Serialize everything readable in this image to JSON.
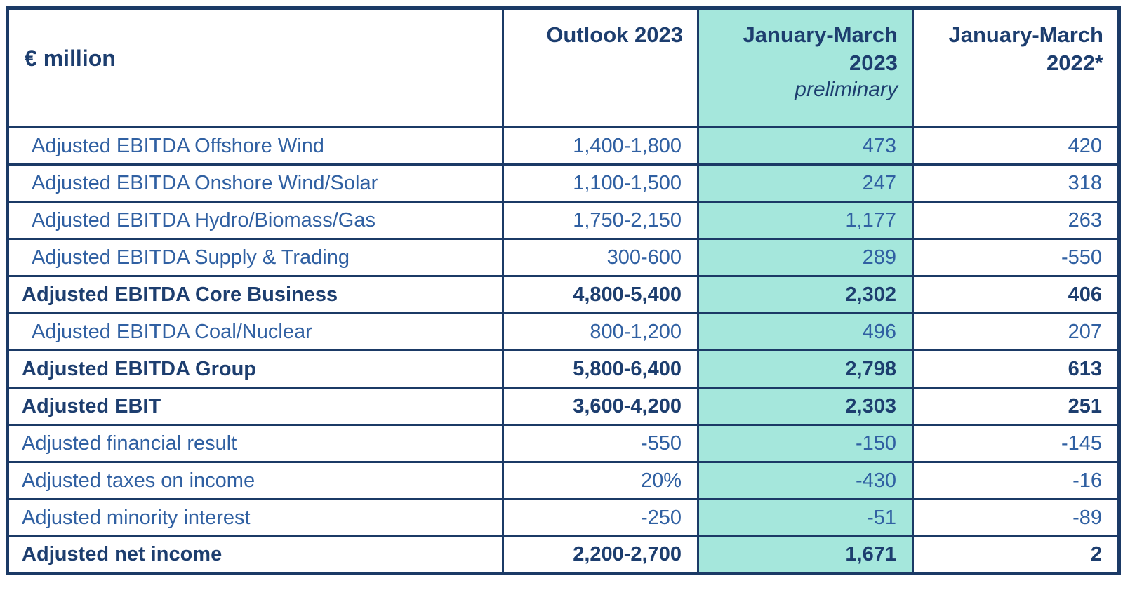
{
  "colors": {
    "highlight": "#A5E7DC",
    "border": "#1B3A66",
    "text_bold": "#1D3E6F",
    "text_regular": "#3060A2",
    "page_bg": "#FFFFFF"
  },
  "table": {
    "unit_label": "€ million",
    "columns": [
      {
        "label": "Outlook 2023",
        "sublabel": "",
        "highlight": false
      },
      {
        "label": "January-March 2023",
        "sublabel": "preliminary",
        "highlight": true
      },
      {
        "label": "January-March 2022*",
        "sublabel": "",
        "highlight": false
      }
    ],
    "rows": [
      {
        "label": "Adjusted EBITDA Offshore Wind",
        "bold": false,
        "indent": true,
        "values": [
          "1,400-1,800",
          "473",
          "420"
        ]
      },
      {
        "label": "Adjusted EBITDA Onshore Wind/Solar",
        "bold": false,
        "indent": true,
        "values": [
          "1,100-1,500",
          "247",
          "318"
        ]
      },
      {
        "label": "Adjusted EBITDA Hydro/Biomass/Gas",
        "bold": false,
        "indent": true,
        "values": [
          "1,750-2,150",
          "1,177",
          "263"
        ]
      },
      {
        "label": "Adjusted EBITDA Supply & Trading",
        "bold": false,
        "indent": true,
        "values": [
          "300-600",
          "289",
          "-550"
        ]
      },
      {
        "label": "Adjusted EBITDA Core Business",
        "bold": true,
        "indent": false,
        "values": [
          "4,800-5,400",
          "2,302",
          "406"
        ]
      },
      {
        "label": "Adjusted EBITDA Coal/Nuclear",
        "bold": false,
        "indent": true,
        "values": [
          "800-1,200",
          "496",
          "207"
        ]
      },
      {
        "label": "Adjusted EBITDA Group",
        "bold": true,
        "indent": false,
        "values": [
          "5,800-6,400",
          "2,798",
          "613"
        ]
      },
      {
        "label": "Adjusted EBIT",
        "bold": true,
        "indent": false,
        "values": [
          "3,600-4,200",
          "2,303",
          "251"
        ]
      },
      {
        "label": "Adjusted financial result",
        "bold": false,
        "indent": false,
        "values": [
          "-550",
          "-150",
          "-145"
        ]
      },
      {
        "label": "Adjusted taxes on income",
        "bold": false,
        "indent": false,
        "values": [
          "20%",
          "-430",
          "-16"
        ]
      },
      {
        "label": "Adjusted minority interest",
        "bold": false,
        "indent": false,
        "values": [
          "-250",
          "-51",
          "-89"
        ]
      },
      {
        "label": "Adjusted net income",
        "bold": true,
        "indent": false,
        "values": [
          "2,200-2,700",
          "1,671",
          "2"
        ]
      }
    ]
  },
  "chart_data": {
    "type": "table",
    "title": "",
    "unit": "€ million",
    "columns": [
      "€ million",
      "Outlook 2023",
      "January-March 2023 preliminary",
      "January-March 2022*"
    ],
    "rows": [
      [
        "Adjusted EBITDA Offshore Wind",
        "1,400-1,800",
        "473",
        "420"
      ],
      [
        "Adjusted EBITDA Onshore Wind/Solar",
        "1,100-1,500",
        "247",
        "318"
      ],
      [
        "Adjusted EBITDA Hydro/Biomass/Gas",
        "1,750-2,150",
        "1,177",
        "263"
      ],
      [
        "Adjusted EBITDA Supply & Trading",
        "300-600",
        "289",
        "-550"
      ],
      [
        "Adjusted EBITDA Core Business",
        "4,800-5,400",
        "2,302",
        "406"
      ],
      [
        "Adjusted EBITDA Coal/Nuclear",
        "800-1,200",
        "496",
        "207"
      ],
      [
        "Adjusted EBITDA Group",
        "5,800-6,400",
        "2,798",
        "613"
      ],
      [
        "Adjusted EBIT",
        "3,600-4,200",
        "2,303",
        "251"
      ],
      [
        "Adjusted financial result",
        "-550",
        "-150",
        "-145"
      ],
      [
        "Adjusted taxes on income",
        "20%",
        "-430",
        "-16"
      ],
      [
        "Adjusted minority interest",
        "-250",
        "-51",
        "-89"
      ],
      [
        "Adjusted net income",
        "2,200-2,700",
        "1,671",
        "2"
      ]
    ],
    "highlighted_column": "January-March 2023 preliminary",
    "bold_rows": [
      "Adjusted EBITDA Core Business",
      "Adjusted EBITDA Group",
      "Adjusted EBIT",
      "Adjusted net income"
    ]
  }
}
